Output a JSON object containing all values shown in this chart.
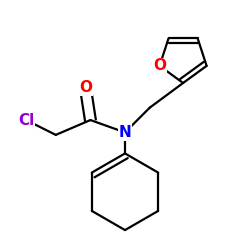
{
  "background_color": "#ffffff",
  "atom_colors": {
    "Cl": "#9400D3",
    "O": "#ff0000",
    "N": "#0000ff",
    "C": "#000000"
  },
  "bond_width": 1.6,
  "font_size_atoms": 11,
  "figure_size": [
    2.5,
    2.5
  ],
  "dpi": 100,
  "xlim": [
    0.0,
    1.0
  ],
  "ylim": [
    0.0,
    1.0
  ]
}
